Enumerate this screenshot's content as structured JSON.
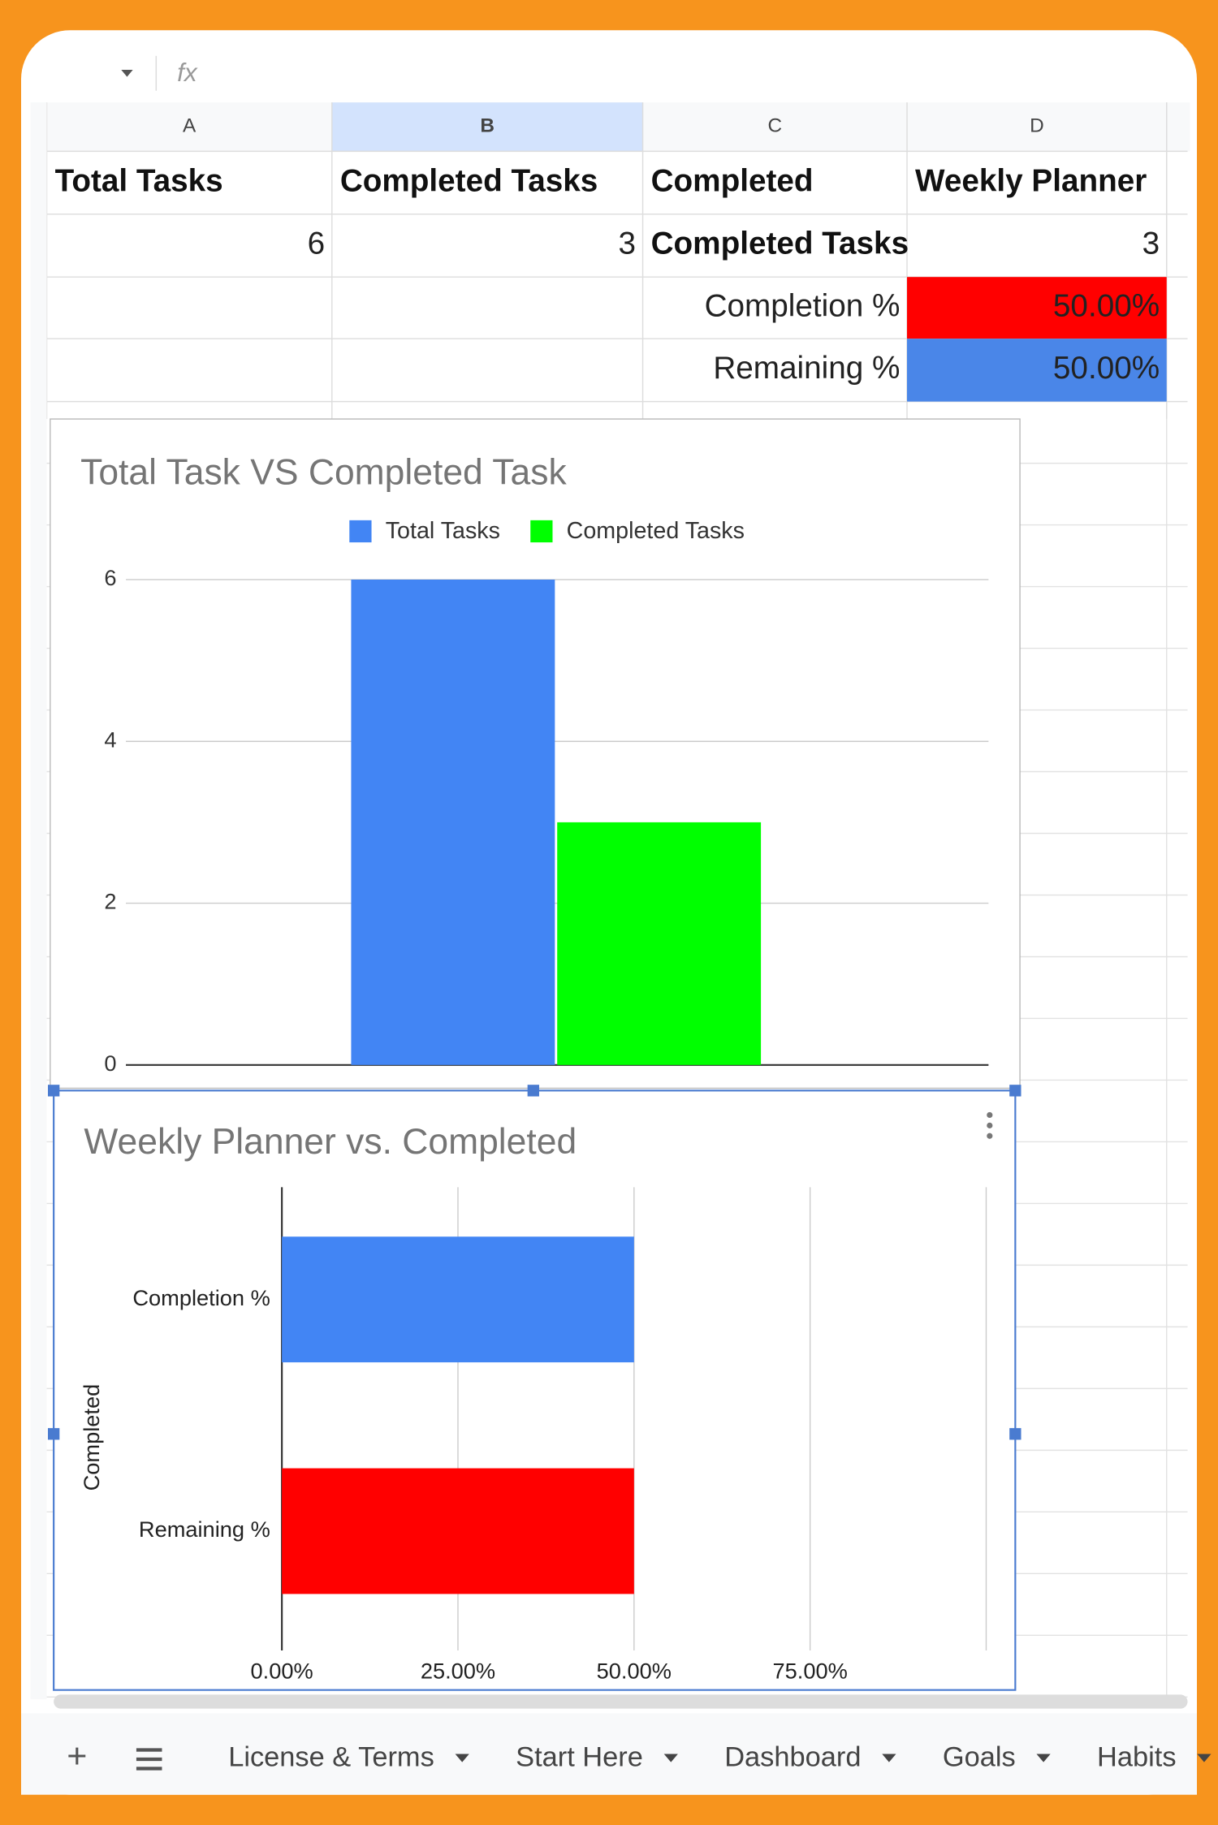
{
  "toolbar": {
    "fx": "fx"
  },
  "columns": [
    "A",
    "B",
    "C",
    "D"
  ],
  "rows": [
    {
      "cells": [
        "Total Tasks",
        "Completed Tasks",
        "Completed",
        "Weekly Planner"
      ],
      "fills": [
        null,
        null,
        null,
        null
      ]
    },
    {
      "cells": [
        6,
        3,
        "Completed Tasks",
        3
      ],
      "fills": [
        null,
        null,
        null,
        null
      ]
    },
    {
      "cells": [
        null,
        null,
        "Completion %",
        "50.00%"
      ],
      "fills": [
        null,
        null,
        null,
        "#ff0000"
      ]
    },
    {
      "cells": [
        null,
        null,
        "Remaining %",
        "50.00%"
      ],
      "fills": [
        null,
        null,
        null,
        "#4a86e8"
      ]
    }
  ],
  "chart_data": [
    {
      "type": "bar",
      "title": "Total Task VS Completed Task",
      "categories": [
        null
      ],
      "series": [
        {
          "name": "Total Tasks",
          "color": "#4285f4",
          "values": [
            6
          ]
        },
        {
          "name": "Completed Tasks",
          "color": "#00ff00",
          "values": [
            3
          ]
        }
      ],
      "ylim": [
        0,
        6
      ],
      "yticks": [
        0,
        2,
        4,
        6
      ],
      "grid": true,
      "legend": "top"
    },
    {
      "type": "hbar",
      "title": "Weekly Planner vs. Completed",
      "y_label": "Completed",
      "categories": [
        "Completion %",
        "Remaining %"
      ],
      "values": [
        50,
        50
      ],
      "colors": [
        "#4285f4",
        "#ff0000"
      ],
      "xlim": [
        0,
        100
      ],
      "xticks": [
        {
          "value": 0,
          "label": "0.00%"
        },
        {
          "value": 25,
          "label": "25.00%"
        },
        {
          "value": 50,
          "label": "50.00%"
        },
        {
          "value": 75,
          "label": "75.00%"
        }
      ],
      "grid": true
    }
  ],
  "tabs": [
    "License & Terms",
    "Start Here",
    "Dashboard",
    "Goals",
    "Habits"
  ]
}
